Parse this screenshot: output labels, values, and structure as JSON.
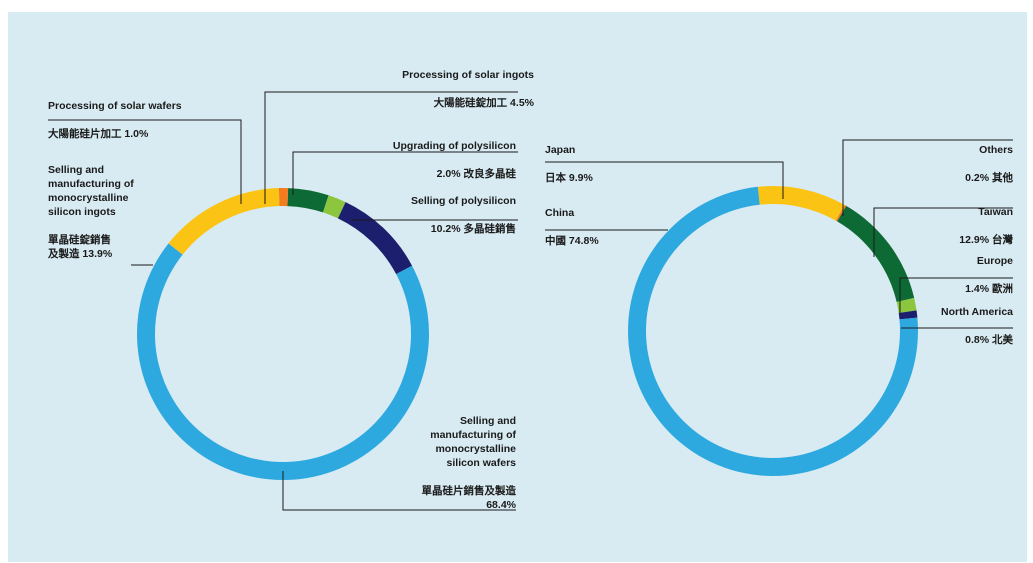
{
  "colors": {
    "background": "#d8ebf2",
    "light_blue": "#2ea9e0",
    "yellow": "#fbc314",
    "dark_green": "#0d6a34",
    "light_green": "#8cc63f",
    "navy": "#1b1f6e",
    "orange": "#f47b20",
    "leader_line": "#1a1a1a"
  },
  "chart_data": [
    {
      "type": "pie",
      "variant": "donut",
      "title": "",
      "slices": [
        {
          "en": "Processing of solar ingots",
          "zh_value": "大陽能硅錠加工 4.5%",
          "value": 4.5,
          "color": "dark_green"
        },
        {
          "en": "Upgrading of polysilicon",
          "zh_value": "2.0% 改良多晶硅",
          "value": 2.0,
          "color": "light_green"
        },
        {
          "en": "Selling of polysilicon",
          "zh_value": "10.2% 多晶硅銷售",
          "value": 10.2,
          "color": "navy"
        },
        {
          "en": "Selling and\nmanufacturing of\nmonocrystalline\nsilicon wafers",
          "zh_value": "單晶硅片銷售及製造\n68.4%",
          "value": 68.4,
          "color": "light_blue"
        },
        {
          "en": "Selling and\nmanufacturing of\nmonocrystalline\nsilicon ingots",
          "zh_value": "單晶硅錠銷售\n及製造 13.9%",
          "value": 13.9,
          "color": "yellow"
        },
        {
          "en": "Processing of solar wafers",
          "zh_value": "大陽能硅片加工 1.0%",
          "value": 1.0,
          "color": "orange"
        }
      ]
    },
    {
      "type": "pie",
      "variant": "donut",
      "title": "",
      "slices": [
        {
          "en": "Japan",
          "zh_value": "日本 9.9%",
          "value": 9.9,
          "color": "yellow"
        },
        {
          "en": "Others",
          "zh_value": "0.2% 其他",
          "value": 0.2,
          "color": "orange"
        },
        {
          "en": "Taiwan",
          "zh_value": "12.9% 台灣",
          "value": 12.9,
          "color": "dark_green"
        },
        {
          "en": "Europe",
          "zh_value": "1.4% 歐洲",
          "value": 1.4,
          "color": "light_green"
        },
        {
          "en": "North America",
          "zh_value": "0.8% 北美",
          "value": 0.8,
          "color": "navy"
        },
        {
          "en": "China",
          "zh_value": "中國 74.8%",
          "value": 74.8,
          "color": "light_blue"
        }
      ]
    }
  ]
}
